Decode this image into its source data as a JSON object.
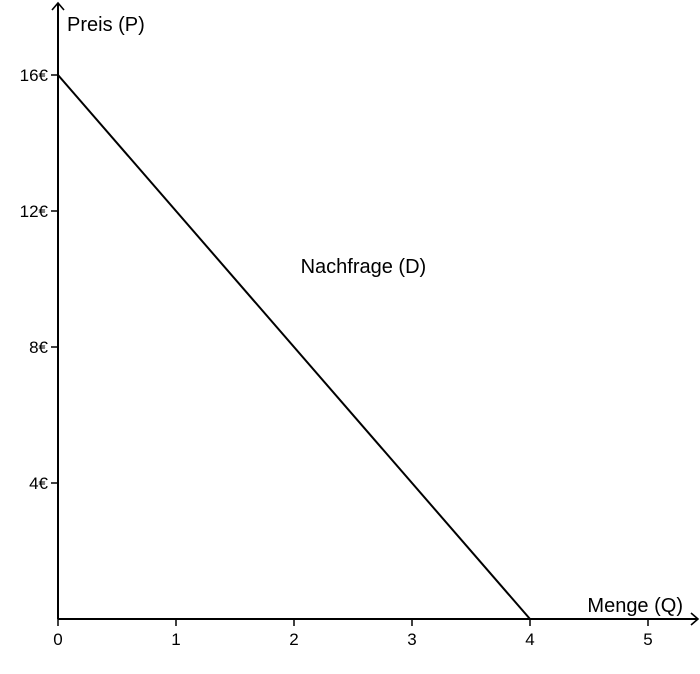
{
  "chart_data": {
    "type": "line",
    "title": "",
    "xlabel": "Menge (Q)",
    "ylabel": "Preis (P)",
    "xlim": [
      0,
      5
    ],
    "ylim": [
      0,
      16
    ],
    "x_ticks": [
      0,
      1,
      2,
      3,
      4,
      5
    ],
    "x_tick_labels": [
      "0",
      "1",
      "2",
      "3",
      "4",
      "5"
    ],
    "y_ticks": [
      16,
      12,
      8,
      4
    ],
    "y_tick_labels": [
      "16€",
      "12€",
      "8€",
      "4€"
    ],
    "grid": false,
    "series": [
      {
        "name": "Nachfrage (D)",
        "x": [
          0,
          4
        ],
        "y": [
          16,
          0
        ],
        "color": "#000000"
      }
    ],
    "annotations": [
      {
        "text": "Nachfrage (D)",
        "x": 2.2,
        "y": 10.3
      }
    ]
  }
}
